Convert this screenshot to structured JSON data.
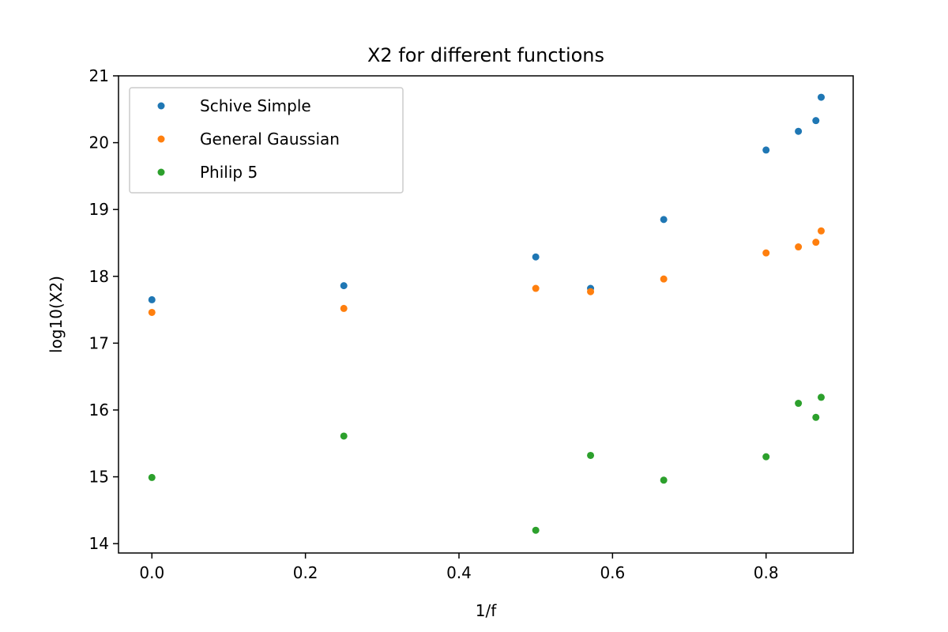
{
  "chart_data": {
    "type": "scatter",
    "title": "X2 for different functions",
    "xlabel": "1/f",
    "ylabel": "log10(X2)",
    "xlim": [
      -0.0435,
      0.9135
    ],
    "ylim": [
      13.86,
      21.0
    ],
    "x_ticks": [
      0.0,
      0.2,
      0.4,
      0.6,
      0.8
    ],
    "x_tick_labels": [
      "0.0",
      "0.2",
      "0.4",
      "0.6",
      "0.8"
    ],
    "y_ticks": [
      14,
      15,
      16,
      17,
      18,
      19,
      20,
      21
    ],
    "y_tick_labels": [
      "14",
      "15",
      "16",
      "17",
      "18",
      "19",
      "20",
      "21"
    ],
    "grid": false,
    "legend_position": "top-left",
    "series": [
      {
        "name": "Schive Simple",
        "color": "#1f77b4",
        "x": [
          0.0,
          0.25,
          0.5,
          0.5714,
          0.6667,
          0.8,
          0.8421,
          0.8649,
          0.8718
        ],
        "y": [
          17.65,
          17.86,
          18.29,
          17.82,
          18.85,
          19.89,
          20.17,
          20.33,
          20.68
        ]
      },
      {
        "name": "General Gaussian",
        "color": "#ff7f0e",
        "x": [
          0.0,
          0.25,
          0.5,
          0.5714,
          0.6667,
          0.8,
          0.8421,
          0.8649,
          0.8718
        ],
        "y": [
          17.46,
          17.52,
          17.82,
          17.77,
          17.96,
          18.35,
          18.44,
          18.51,
          18.68
        ]
      },
      {
        "name": "Philip 5",
        "color": "#2ca02c",
        "x": [
          0.0,
          0.25,
          0.5,
          0.5714,
          0.6667,
          0.8,
          0.8421,
          0.8649,
          0.8718
        ],
        "y": [
          14.99,
          15.61,
          14.2,
          15.32,
          14.95,
          15.3,
          16.1,
          15.89,
          16.19
        ]
      }
    ]
  }
}
